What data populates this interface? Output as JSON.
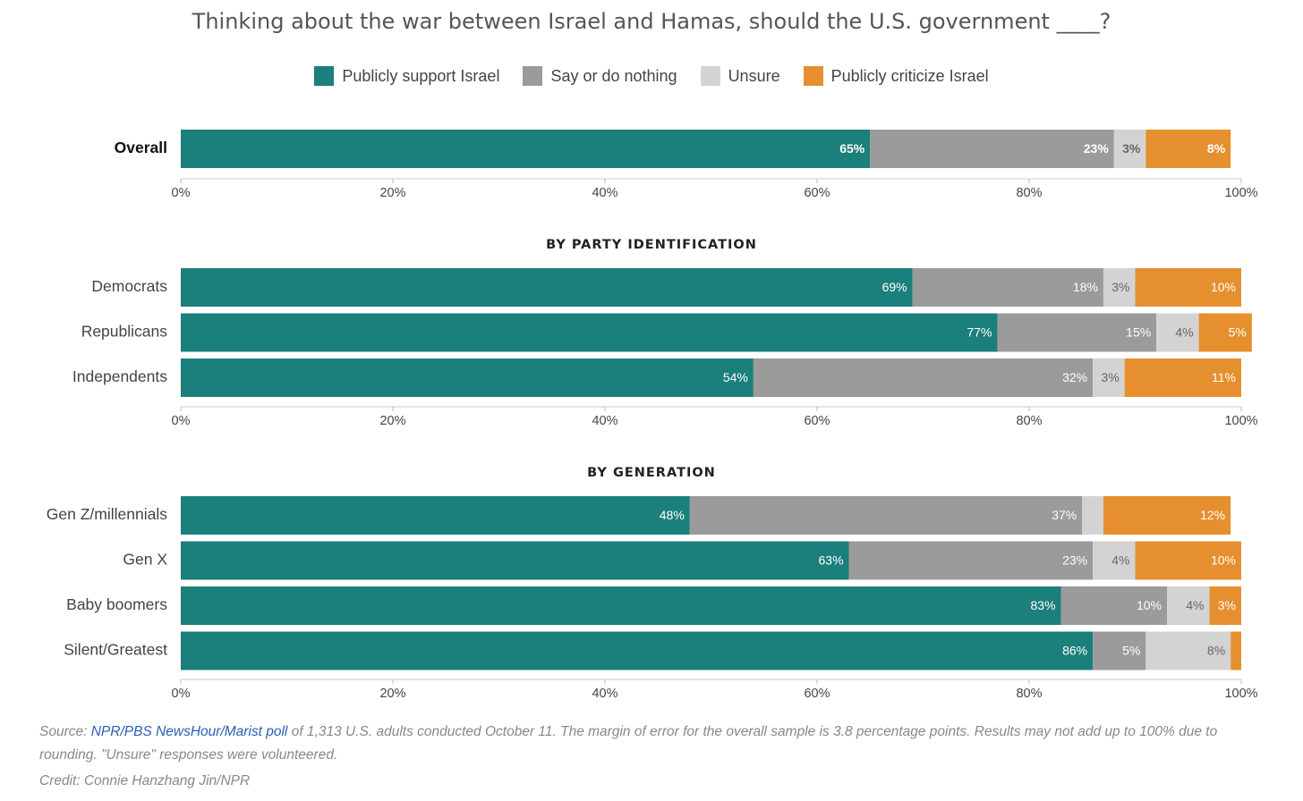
{
  "chart_data": {
    "type": "bar",
    "orientation": "horizontal",
    "stacked": true,
    "title": "Thinking about the war between Israel and Hamas, should the U.S. government ____?",
    "legend_position": "top",
    "xlim": [
      0,
      100
    ],
    "x_ticks": [
      "0%",
      "20%",
      "40%",
      "60%",
      "80%",
      "100%"
    ],
    "series": [
      {
        "name": "Publicly support Israel",
        "color": "#1b7f7b"
      },
      {
        "name": "Say or do nothing",
        "color": "#9b9b9b"
      },
      {
        "name": "Unsure",
        "color": "#d3d3d3"
      },
      {
        "name": "Publicly criticize Israel",
        "color": "#e68f2f"
      }
    ],
    "groups": [
      {
        "heading": "",
        "rows": [
          {
            "category": "Overall",
            "bold": true,
            "values": [
              65,
              23,
              3,
              8
            ],
            "labels": [
              "65%",
              "23%",
              "3%",
              "8%"
            ]
          }
        ]
      },
      {
        "heading": "BY PARTY IDENTIFICATION",
        "rows": [
          {
            "category": "Democrats",
            "values": [
              69,
              18,
              3,
              10
            ],
            "labels": [
              "69%",
              "18%",
              "3%",
              "10%"
            ]
          },
          {
            "category": "Republicans",
            "values": [
              77,
              15,
              4,
              5
            ],
            "labels": [
              "77%",
              "15%",
              "4%",
              "5%"
            ]
          },
          {
            "category": "Independents",
            "values": [
              54,
              32,
              3,
              11
            ],
            "labels": [
              "54%",
              "32%",
              "3%",
              "11%"
            ]
          }
        ]
      },
      {
        "heading": "BY GENERATION",
        "rows": [
          {
            "category": "Gen Z/millennials",
            "values": [
              48,
              37,
              2,
              12
            ],
            "labels": [
              "48%",
              "37%",
              "",
              "12%"
            ]
          },
          {
            "category": "Gen X",
            "values": [
              63,
              23,
              4,
              10
            ],
            "labels": [
              "63%",
              "23%",
              "4%",
              "10%"
            ]
          },
          {
            "category": "Baby boomers",
            "values": [
              83,
              10,
              4,
              3
            ],
            "labels": [
              "83%",
              "10%",
              "4%",
              "3%"
            ]
          },
          {
            "category": "Silent/Greatest",
            "values": [
              86,
              5,
              8,
              1
            ],
            "labels": [
              "86%",
              "5%",
              "8%",
              ""
            ]
          }
        ]
      }
    ]
  },
  "source": {
    "prefix": "Source: ",
    "link_text": "NPR/PBS NewsHour/Marist poll",
    "text": " of 1,313 U.S. adults conducted October 11. The margin of error for the overall sample is 3.8 percentage points. Results may not add up to 100% due to rounding. \"Unsure\" responses were volunteered."
  },
  "credit": "Credit: Connie Hanzhang Jin/NPR"
}
